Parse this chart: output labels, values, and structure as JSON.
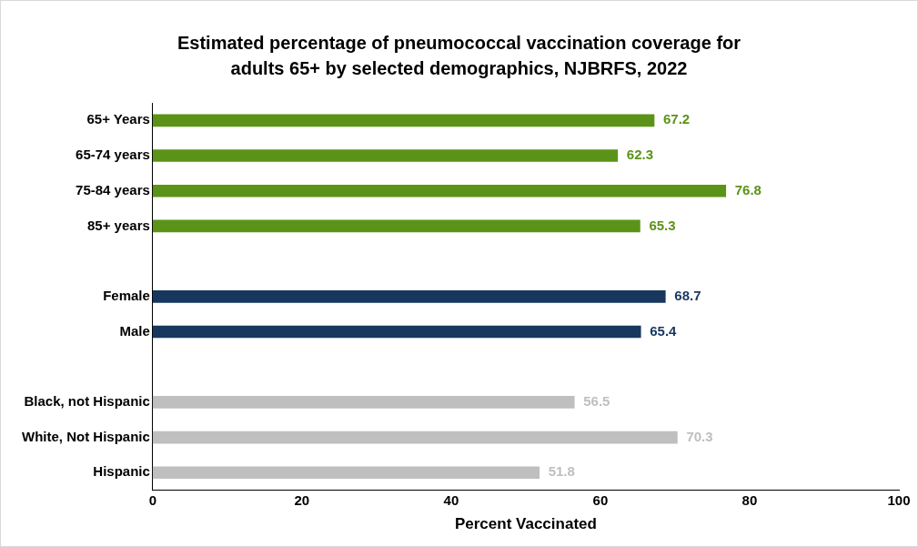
{
  "chart_data": {
    "type": "bar",
    "orientation": "horizontal",
    "title": "Estimated percentage of pneumococcal vaccination coverage for adults 65+ by selected demographics, NJBRFS, 2022",
    "xlabel": "Percent Vaccinated",
    "categories": [
      "65+ Years",
      "65-74 years",
      "75-84 years",
      "85+ years",
      null,
      "Female",
      "Male",
      null,
      "Black, not Hispanic",
      "White, Not Hispanic",
      "Hispanic"
    ],
    "values": [
      67.2,
      62.3,
      76.8,
      65.3,
      null,
      68.7,
      65.4,
      null,
      56.5,
      70.3,
      51.8
    ],
    "colors": [
      "#5b9318",
      "#5b9318",
      "#5b9318",
      "#5b9318",
      "#5b9318",
      "#17375e",
      "#17375e",
      "#17375e",
      "#bfbfbf",
      "#bfbfbf",
      "#bfbfbf"
    ],
    "xlim": [
      0,
      100
    ],
    "xticks": [
      0,
      20,
      40,
      60,
      80,
      100
    ],
    "data_labels": true
  }
}
